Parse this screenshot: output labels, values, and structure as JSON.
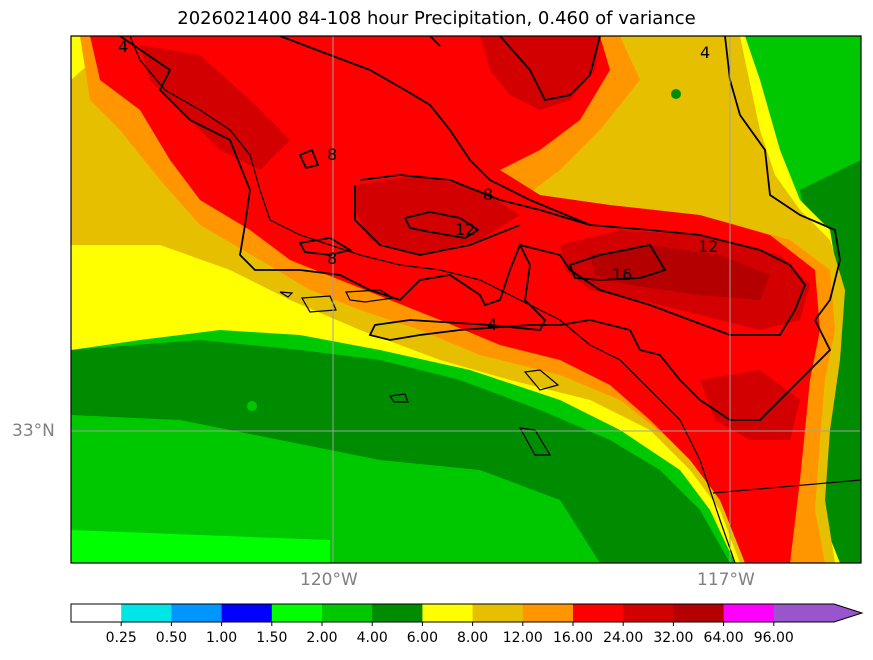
{
  "title": "2026021400 84-108 hour Precipitation, 0.460 of variance",
  "axes": {
    "lat_labels": [
      {
        "text": "33°N",
        "value": 33
      }
    ],
    "lon_labels": [
      {
        "text": "120°W",
        "value": -120
      },
      {
        "text": "117°W",
        "value": -117
      }
    ]
  },
  "contours": {
    "labels": [
      "4",
      "4",
      "8",
      "8",
      "8",
      "12",
      "16",
      "4",
      "12"
    ]
  },
  "colorbar": {
    "colors": [
      "#ffffff",
      "#00e5e5",
      "#0096ff",
      "#0000ff",
      "#00ff00",
      "#00c800",
      "#008c00",
      "#ffff00",
      "#e6c000",
      "#ff9600",
      "#ff0000",
      "#d20000",
      "#b40000",
      "#ff00ff",
      "#9955cc"
    ],
    "tick_labels": [
      "0.25",
      "0.50",
      "1.00",
      "1.50",
      "2.00",
      "4.00",
      "6.00",
      "8.00",
      "12.00",
      "16.00",
      "24.00",
      "32.00",
      "64.00",
      "96.00"
    ],
    "extend": "max"
  }
}
